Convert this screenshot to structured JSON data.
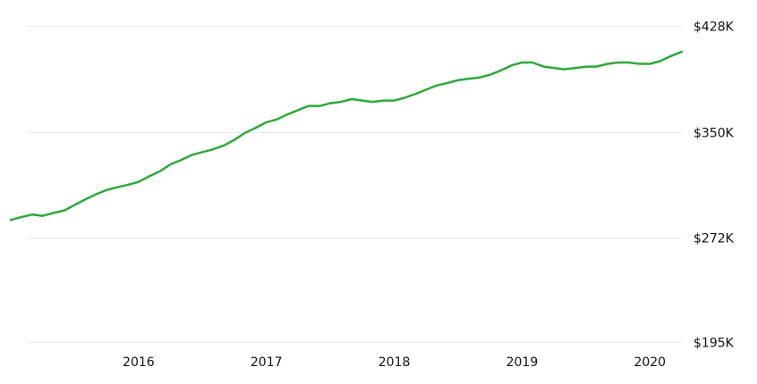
{
  "chart_data": {
    "type": "line",
    "title": "",
    "xlabel": "",
    "ylabel": "",
    "grid": true,
    "legend": "none",
    "color": "#2fa83a",
    "x_ticks": [
      {
        "label": "2016",
        "value": 2016.0
      },
      {
        "label": "2017",
        "value": 2017.0
      },
      {
        "label": "2018",
        "value": 2018.0
      },
      {
        "label": "2019",
        "value": 2019.0
      },
      {
        "label": "2020",
        "value": 2020.0
      }
    ],
    "y_ticks": [
      {
        "label": "$428K",
        "value": 428
      },
      {
        "label": "$350K",
        "value": 350
      },
      {
        "label": "$272K",
        "value": 272
      },
      {
        "label": "$195K",
        "value": 195
      }
    ],
    "xlim": [
      2015.0,
      2020.25
    ],
    "ylim": [
      195,
      428
    ],
    "series": [
      {
        "x": [
          2015.0,
          2015.08,
          2015.17,
          2015.25,
          2015.33,
          2015.42,
          2015.5,
          2015.58,
          2015.67,
          2015.75,
          2015.83,
          2015.92,
          2016.0,
          2016.08,
          2016.17,
          2016.25,
          2016.33,
          2016.42,
          2016.5,
          2016.58,
          2016.67,
          2016.75,
          2016.83,
          2016.92,
          2017.0,
          2017.08,
          2017.17,
          2017.25,
          2017.33,
          2017.42,
          2017.5,
          2017.58,
          2017.67,
          2017.75,
          2017.83,
          2017.92,
          2018.0,
          2018.08,
          2018.17,
          2018.25,
          2018.33,
          2018.42,
          2018.5,
          2018.58,
          2018.67,
          2018.75,
          2018.83,
          2018.92,
          2019.0,
          2019.08,
          2019.17,
          2019.25,
          2019.33,
          2019.42,
          2019.5,
          2019.58,
          2019.67,
          2019.75,
          2019.83,
          2019.92,
          2020.0,
          2020.08,
          2020.17,
          2020.25
        ],
        "values": [
          285,
          287,
          289,
          288,
          290,
          292,
          296,
          300,
          304,
          307,
          309,
          311,
          313,
          317,
          321,
          326,
          329,
          333,
          335,
          337,
          340,
          344,
          349,
          353,
          357,
          359,
          363,
          366,
          369,
          369,
          371,
          372,
          374,
          373,
          372,
          373,
          373,
          375,
          378,
          381,
          384,
          386,
          388,
          389,
          390,
          392,
          395,
          399,
          401,
          401,
          398,
          397,
          396,
          397,
          398,
          398,
          400,
          401,
          401,
          400,
          400,
          402,
          406,
          409
        ]
      }
    ]
  }
}
